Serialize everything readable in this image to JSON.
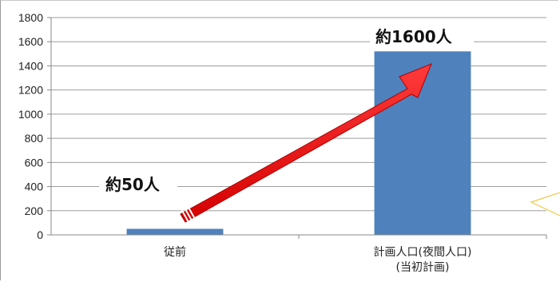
{
  "chart_data": {
    "type": "bar",
    "categories": [
      "従前",
      "計画人口(夜間人口)\n(当初計画)"
    ],
    "values": [
      50,
      1520
    ],
    "ylim": [
      0,
      1800
    ],
    "yticks": [
      0,
      200,
      400,
      600,
      800,
      1000,
      1200,
      1400,
      1600,
      1800
    ],
    "grid": true,
    "bar_color": "#4f81bd",
    "arrow_color": "#ff0000",
    "annotations": [
      "約50人",
      "約1600人"
    ]
  }
}
